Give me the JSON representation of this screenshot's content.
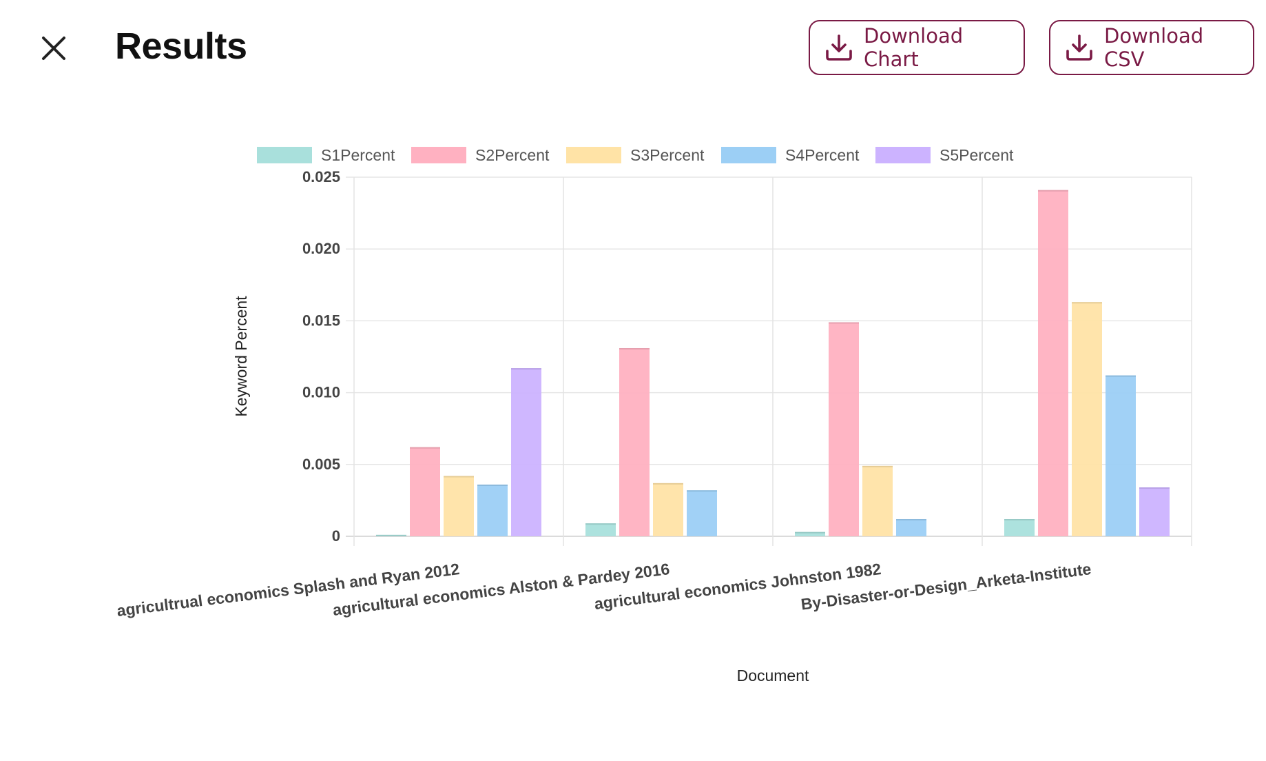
{
  "header": {
    "title": "Results",
    "close_icon": "close-icon",
    "download_chart_label": "Download Chart",
    "download_csv_label": "Download CSV",
    "download_icon": "download-icon",
    "accent_color": "#7a1a45"
  },
  "chart_data": {
    "type": "bar",
    "title": "",
    "xlabel": "Document",
    "ylabel": "Keyword Percent",
    "ylim": [
      0,
      0.025
    ],
    "yticks": [
      0,
      0.005,
      0.01,
      0.015,
      0.02,
      0.025
    ],
    "ytick_labels": [
      "0",
      "0.005",
      "0.010",
      "0.015",
      "0.020",
      "0.025"
    ],
    "grid": true,
    "legend_position": "top",
    "categories": [
      "agricultrual economics Splash and Ryan 2012",
      "agricultural economics Alston & Pardey 2016",
      "agricultural economics Johnston 1982",
      "By-Disaster-or-Design_Arketa-Institute"
    ],
    "series": [
      {
        "name": "S1Percent",
        "color": "#a9e0dc",
        "values": [
          0.0001,
          0.0009,
          0.0003,
          0.0012
        ]
      },
      {
        "name": "S2Percent",
        "color": "#ffb1c1",
        "values": [
          0.0062,
          0.0131,
          0.0149,
          0.0241
        ]
      },
      {
        "name": "S3Percent",
        "color": "#ffe3a6",
        "values": [
          0.0042,
          0.0037,
          0.0049,
          0.0163
        ]
      },
      {
        "name": "S4Percent",
        "color": "#9ccff5",
        "values": [
          0.0036,
          0.0032,
          0.0012,
          0.0112
        ]
      },
      {
        "name": "S5Percent",
        "color": "#ccb3ff",
        "values": [
          0.0117,
          0.0,
          0.0,
          0.0034
        ]
      }
    ]
  }
}
